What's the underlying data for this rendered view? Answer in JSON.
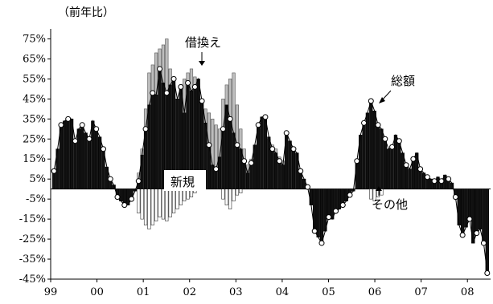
{
  "chart_data": {
    "type": "bar",
    "unit_label": "（前年比）",
    "y_ticks": [
      "75%",
      "65%",
      "55%",
      "45%",
      "35%",
      "25%",
      "15%",
      "5%",
      "-5%",
      "-15%",
      "-25%",
      "-35%",
      "-45%"
    ],
    "y_tick_values": [
      75,
      65,
      55,
      45,
      35,
      25,
      15,
      5,
      -5,
      -15,
      -25,
      -35,
      -45
    ],
    "ylim": [
      -45,
      80
    ],
    "x_ticks": [
      "99",
      "00",
      "01",
      "02",
      "03",
      "04",
      "05",
      "06",
      "07",
      "08"
    ],
    "series": [
      {
        "name": "総額",
        "values": [
          9,
          20,
          32,
          34,
          35,
          35,
          24,
          30,
          32,
          28,
          25,
          34,
          30,
          26,
          20,
          11,
          5,
          2,
          -4,
          -6,
          -8,
          -8,
          -5,
          -1,
          4,
          17,
          30,
          42,
          48,
          47,
          60,
          53,
          48,
          52,
          55,
          45,
          51,
          38,
          53,
          49,
          51,
          55,
          44,
          33,
          22,
          12,
          10,
          16,
          30,
          42,
          35,
          28,
          22,
          20,
          14,
          8,
          13,
          22,
          32,
          36,
          36,
          26,
          20,
          18,
          14,
          12,
          28,
          24,
          20,
          18,
          9,
          5,
          1,
          -8,
          -21,
          -24,
          -27,
          -21,
          -14,
          -15,
          -11,
          -10,
          -8,
          -6,
          -3,
          -1,
          14,
          27,
          33,
          38,
          44,
          39,
          32,
          30,
          25,
          20,
          21,
          27,
          24,
          18,
          12,
          10,
          15,
          18,
          10,
          8,
          6,
          5,
          4,
          6,
          4,
          7,
          5,
          3,
          -4,
          -18,
          -23,
          -19,
          -15,
          -27,
          -22,
          -20,
          -27,
          -42
        ]
      },
      {
        "name": "借換え",
        "values": [
          9,
          20,
          32,
          34,
          35,
          35,
          24,
          30,
          32,
          28,
          25,
          34,
          30,
          26,
          20,
          11,
          5,
          2,
          -4,
          -6,
          -8,
          -8,
          -5,
          -1,
          8,
          20,
          40,
          58,
          62,
          68,
          70,
          72,
          75,
          60,
          52,
          45,
          48,
          55,
          58,
          60,
          56,
          50,
          44,
          40,
          38,
          35,
          32,
          30,
          45,
          52,
          55,
          58,
          42,
          30,
          20,
          12,
          15,
          22,
          30,
          36,
          36,
          25,
          22,
          20,
          16,
          14,
          28,
          24,
          20,
          18,
          9,
          5,
          1,
          -8,
          -21,
          -24,
          -27,
          -21,
          -14,
          -15,
          -11,
          -10,
          -8,
          -6,
          -3,
          -1,
          14,
          27,
          33,
          38,
          44,
          39,
          32,
          30,
          25,
          20,
          21,
          27,
          24,
          18,
          12,
          10,
          15,
          18,
          10,
          8,
          6,
          5,
          4,
          6,
          4,
          7,
          5,
          3,
          -4,
          -18,
          -23,
          -19,
          -15,
          -27,
          -22,
          -20,
          -27,
          -42
        ]
      },
      {
        "name": "新規",
        "values": [
          0,
          0,
          0,
          0,
          0,
          0,
          0,
          0,
          0,
          0,
          0,
          0,
          0,
          0,
          0,
          0,
          0,
          0,
          -4,
          -6,
          -8,
          -8,
          -5,
          -1,
          -12,
          -15,
          -18,
          -20,
          -18,
          -16,
          -14,
          -15,
          -16,
          -14,
          -12,
          -10,
          -8,
          -6,
          -5,
          -4,
          -2,
          0,
          0,
          0,
          0,
          0,
          0,
          0,
          -5,
          -8,
          -10,
          -6,
          -3,
          -2,
          0,
          0,
          0,
          0,
          0,
          0,
          0,
          0,
          0,
          0,
          0,
          0,
          0,
          0,
          0,
          0,
          0,
          0,
          0,
          -8,
          -21,
          -24,
          -27,
          -21,
          -14,
          -15,
          -11,
          -10,
          -8,
          -6,
          -3,
          -1,
          0,
          0,
          0,
          0,
          0,
          0,
          0,
          0,
          0,
          0,
          0,
          0,
          0,
          0,
          0,
          0,
          0,
          0,
          0,
          0,
          0,
          0,
          0,
          0,
          0,
          0,
          0,
          0,
          -4,
          -18,
          -23,
          -19,
          -15,
          -27,
          -22,
          -20,
          -27,
          -42
        ]
      },
      {
        "name": "その他",
        "values": [
          0,
          0,
          0,
          0,
          0,
          0,
          0,
          0,
          0,
          0,
          0,
          0,
          0,
          0,
          0,
          0,
          0,
          0,
          0,
          0,
          0,
          0,
          0,
          0,
          0,
          0,
          0,
          0,
          0,
          0,
          0,
          0,
          0,
          0,
          0,
          0,
          0,
          0,
          0,
          0,
          0,
          0,
          0,
          0,
          0,
          0,
          0,
          0,
          0,
          0,
          0,
          0,
          0,
          0,
          0,
          0,
          0,
          0,
          0,
          0,
          0,
          0,
          0,
          0,
          0,
          0,
          0,
          0,
          0,
          0,
          0,
          0,
          0,
          0,
          0,
          0,
          0,
          0,
          0,
          0,
          0,
          0,
          0,
          0,
          0,
          0,
          0,
          0,
          0,
          0,
          -5,
          -6,
          -4,
          -3,
          0,
          0,
          0,
          0,
          0,
          0,
          0,
          0,
          0,
          0,
          0,
          0,
          0,
          0,
          0,
          0,
          0,
          0,
          0,
          0,
          0,
          0,
          0,
          0,
          0,
          0,
          0,
          0
        ]
      }
    ],
    "annotations": [
      {
        "text": "借換え"
      },
      {
        "text": "総額"
      },
      {
        "text": "新規"
      },
      {
        "text": "その他"
      }
    ]
  }
}
